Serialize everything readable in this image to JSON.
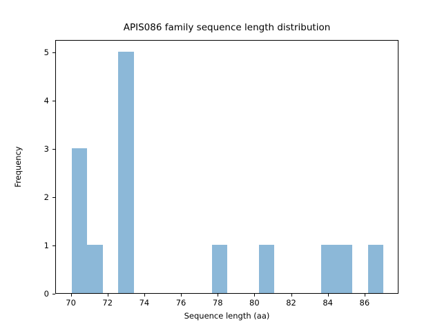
{
  "chart_data": {
    "type": "bar",
    "chart_kind": "histogram",
    "title": "APIS086 family sequence length distribution",
    "xlabel": "Sequence length (aa)",
    "ylabel": "Frequency",
    "bin_edges": [
      70.0,
      70.85,
      71.7,
      72.55,
      73.4,
      74.25,
      75.1,
      75.95,
      76.8,
      77.65,
      78.5,
      79.35,
      80.2,
      81.05,
      81.9,
      82.75,
      83.6,
      84.45,
      85.3,
      86.15,
      87.0
    ],
    "counts": [
      3,
      1,
      0,
      5,
      0,
      0,
      0,
      0,
      0,
      1,
      0,
      0,
      1,
      0,
      0,
      0,
      1,
      1,
      0,
      1
    ],
    "x_tick_values": [
      70,
      72,
      74,
      76,
      78,
      80,
      82,
      84,
      86
    ],
    "x_tick_labels": [
      "70",
      "72",
      "74",
      "76",
      "78",
      "80",
      "82",
      "84",
      "86"
    ],
    "y_tick_values": [
      0,
      1,
      2,
      3,
      4,
      5
    ],
    "y_tick_labels": [
      "0",
      "1",
      "2",
      "3",
      "4",
      "5"
    ],
    "xlim": [
      69.15,
      87.85
    ],
    "ylim": [
      0,
      5.25
    ],
    "bar_color": "#8cb8d8",
    "spine_color": "#000000",
    "grid": false,
    "legend": false
  }
}
